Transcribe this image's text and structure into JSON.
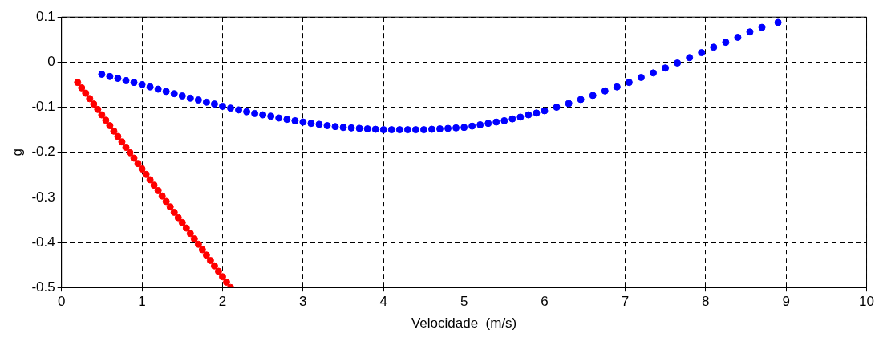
{
  "chart_data": {
    "type": "scatter",
    "xlabel": "Velocidade  (m/s)",
    "ylabel": "g",
    "xlim": [
      0,
      10
    ],
    "xticks": [
      0,
      1,
      2,
      3,
      4,
      5,
      6,
      7,
      8,
      9,
      10
    ],
    "ylim": [
      -0.5,
      0.1
    ],
    "yticks": [
      -0.5,
      -0.4,
      -0.3,
      -0.2,
      -0.1,
      0,
      0.1
    ],
    "grid": true,
    "legend": false,
    "marker": "circle",
    "series": [
      {
        "color": "#0000ff",
        "x": [
          0.5,
          0.6,
          0.7,
          0.8,
          0.9,
          1.0,
          1.1,
          1.2,
          1.3,
          1.4,
          1.5,
          1.6,
          1.7,
          1.8,
          1.9,
          2.0,
          2.1,
          2.2,
          2.3,
          2.4,
          2.5,
          2.6,
          2.7,
          2.8,
          2.9,
          3.0,
          3.1,
          3.2,
          3.3,
          3.4,
          3.5,
          3.6,
          3.7,
          3.8,
          3.9,
          4.0,
          4.1,
          4.2,
          4.3,
          4.4,
          4.5,
          4.6,
          4.7,
          4.8,
          4.9,
          5.0,
          5.1,
          5.2,
          5.3,
          5.4,
          5.5,
          5.6,
          5.7,
          5.8,
          5.9,
          6.0,
          6.15,
          6.3,
          6.45,
          6.6,
          6.75,
          6.9,
          7.05,
          7.2,
          7.35,
          7.5,
          7.65,
          7.8,
          7.95,
          8.1,
          8.25,
          8.4,
          8.55,
          8.7,
          8.9
        ],
        "values": [
          -0.027,
          -0.032,
          -0.036,
          -0.041,
          -0.045,
          -0.05,
          -0.055,
          -0.06,
          -0.065,
          -0.07,
          -0.075,
          -0.08,
          -0.084,
          -0.089,
          -0.093,
          -0.098,
          -0.102,
          -0.106,
          -0.11,
          -0.114,
          -0.117,
          -0.12,
          -0.124,
          -0.127,
          -0.13,
          -0.133,
          -0.136,
          -0.138,
          -0.141,
          -0.143,
          -0.145,
          -0.146,
          -0.147,
          -0.148,
          -0.149,
          -0.15,
          -0.15,
          -0.15,
          -0.15,
          -0.15,
          -0.15,
          -0.149,
          -0.148,
          -0.147,
          -0.146,
          -0.145,
          -0.142,
          -0.139,
          -0.136,
          -0.133,
          -0.13,
          -0.126,
          -0.122,
          -0.117,
          -0.113,
          -0.108,
          -0.1,
          -0.092,
          -0.083,
          -0.074,
          -0.064,
          -0.055,
          -0.045,
          -0.034,
          -0.024,
          -0.013,
          -0.002,
          0.01,
          0.021,
          0.033,
          0.044,
          0.055,
          0.067,
          0.077,
          0.088
        ]
      },
      {
        "color": "#ff0000",
        "x": [
          0.2,
          0.25,
          0.3,
          0.35,
          0.4,
          0.45,
          0.5,
          0.55,
          0.6,
          0.65,
          0.7,
          0.75,
          0.8,
          0.85,
          0.9,
          0.95,
          1.0,
          1.05,
          1.1,
          1.15,
          1.2,
          1.25,
          1.3,
          1.35,
          1.4,
          1.45,
          1.5,
          1.55,
          1.6,
          1.65,
          1.7,
          1.75,
          1.8,
          1.85,
          1.9,
          1.95,
          2.0,
          2.05,
          2.1
        ],
        "values": [
          -0.045,
          -0.057,
          -0.069,
          -0.081,
          -0.093,
          -0.105,
          -0.117,
          -0.129,
          -0.141,
          -0.153,
          -0.165,
          -0.177,
          -0.189,
          -0.201,
          -0.213,
          -0.225,
          -0.237,
          -0.249,
          -0.261,
          -0.273,
          -0.285,
          -0.297,
          -0.309,
          -0.321,
          -0.333,
          -0.345,
          -0.356,
          -0.368,
          -0.38,
          -0.392,
          -0.404,
          -0.416,
          -0.428,
          -0.44,
          -0.452,
          -0.464,
          -0.476,
          -0.488,
          -0.5
        ]
      }
    ]
  }
}
